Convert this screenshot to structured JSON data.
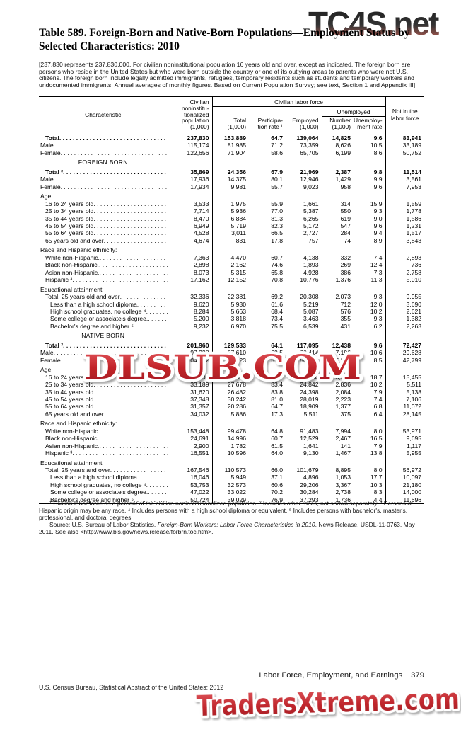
{
  "watermarks": {
    "top": "TC4S.net",
    "middle": "DLSUB.COM",
    "bottom": "TradersXtreme.com"
  },
  "title": "Table 589. Foreign-Born and Native-Born Populations—Employment Status by Selected Characteristics: 2010",
  "intro": "[237,830 represents 237,830,000. For civilian noninstitutional population 16 years old and over, except as indicated. The foreign born are persons who reside in the United States but who were born outside the country or one of its outlying areas to parents who were not U.S. citizens. The foreign born include legally admitted immigrants, refugees, temporary residents such as students and temporary workers and undocumented immigrants. Annual averages of monthly figures. Based on Current Population Survey; see text, Section 1 and Appendix III]",
  "table": {
    "headers": {
      "characteristic": "Characteristic",
      "population": "Civilian\nnoninstitu-\ntionalized\npopulation\n(1,000)",
      "clf_group": "Civilian labor force",
      "total": "Total\n(1,000)",
      "participation": "Participa-\ntion rate ¹",
      "employed": "Employed\n(1,000)",
      "unemployed_group": "Unemployed",
      "number": "Number\n(1,000)",
      "unemp_rate": "Unemploy-\nment rate",
      "not_in_lf": "Not in the\nlabor force"
    },
    "rows": [
      {
        "t": "d",
        "l": "Total",
        "i": 1,
        "b": 1,
        "sp": 1,
        "v": [
          "237,830",
          "153,889",
          "64.7",
          "139,064",
          "14,825",
          "9.6",
          "83,941"
        ]
      },
      {
        "t": "d",
        "l": "Male",
        "i": 0,
        "v": [
          "115,174",
          "81,985",
          "71.2",
          "73,359",
          "8,626",
          "10.5",
          "33,189"
        ]
      },
      {
        "t": "d",
        "l": "Female",
        "i": 0,
        "v": [
          "122,656",
          "71,904",
          "58.6",
          "65,705",
          "6,199",
          "8.6",
          "50,752"
        ]
      },
      {
        "t": "s",
        "l": "FOREIGN BORN",
        "sp": 1
      },
      {
        "t": "d",
        "l": "Total ²",
        "i": 1,
        "b": 1,
        "sp": 1,
        "v": [
          "35,869",
          "24,356",
          "67.9",
          "21,969",
          "2,387",
          "9.8",
          "11,514"
        ]
      },
      {
        "t": "d",
        "l": "Male",
        "i": 0,
        "v": [
          "17,936",
          "14,375",
          "80.1",
          "12,946",
          "1,429",
          "9.9",
          "3,561"
        ]
      },
      {
        "t": "d",
        "l": "Female",
        "i": 0,
        "v": [
          "17,934",
          "9,981",
          "55.7",
          "9,023",
          "958",
          "9.6",
          "7,953"
        ]
      },
      {
        "t": "g",
        "l": "Age:",
        "i": 0,
        "sp": 1
      },
      {
        "t": "d",
        "l": "16 to 24 years old",
        "i": 1,
        "v": [
          "3,533",
          "1,975",
          "55.9",
          "1,661",
          "314",
          "15.9",
          "1,559"
        ]
      },
      {
        "t": "d",
        "l": "25 to 34 years old",
        "i": 1,
        "v": [
          "7,714",
          "5,936",
          "77.0",
          "5,387",
          "550",
          "9.3",
          "1,778"
        ]
      },
      {
        "t": "d",
        "l": "35 to 44 years old",
        "i": 1,
        "v": [
          "8,470",
          "6,884",
          "81.3",
          "6,265",
          "619",
          "9.0",
          "1,586"
        ]
      },
      {
        "t": "d",
        "l": "45 to 54 years old",
        "i": 1,
        "v": [
          "6,949",
          "5,719",
          "82.3",
          "5,172",
          "547",
          "9.6",
          "1,231"
        ]
      },
      {
        "t": "d",
        "l": "55 to 64 years old",
        "i": 1,
        "v": [
          "4,528",
          "3,011",
          "66.5",
          "2,727",
          "284",
          "9.4",
          "1,517"
        ]
      },
      {
        "t": "d",
        "l": "65 years old and over",
        "i": 1,
        "v": [
          "4,674",
          "831",
          "17.8",
          "757",
          "74",
          "8.9",
          "3,843"
        ]
      },
      {
        "t": "g",
        "l": "Race and Hispanic ethnicity:",
        "i": 0,
        "sp": 1
      },
      {
        "t": "d",
        "l": "White non-Hispanic.",
        "i": 1,
        "v": [
          "7,363",
          "4,470",
          "60.7",
          "4,138",
          "332",
          "7.4",
          "2,893"
        ]
      },
      {
        "t": "d",
        "l": "Black non-Hispanic.",
        "i": 1,
        "v": [
          "2,898",
          "2,162",
          "74.6",
          "1,893",
          "269",
          "12.4",
          "736"
        ]
      },
      {
        "t": "d",
        "l": "Asian non-Hispanic.",
        "i": 1,
        "v": [
          "8,073",
          "5,315",
          "65.8",
          "4,928",
          "386",
          "7.3",
          "2,758"
        ]
      },
      {
        "t": "d",
        "l": "Hispanic ³",
        "i": 1,
        "v": [
          "17,162",
          "12,152",
          "70.8",
          "10,776",
          "1,376",
          "11.3",
          "5,010"
        ]
      },
      {
        "t": "g",
        "l": "Educational attainment:",
        "i": 0,
        "sp": 1
      },
      {
        "t": "d",
        "l": "Total, 25 years old and over",
        "i": 1,
        "v": [
          "32,336",
          "22,381",
          "69.2",
          "20,308",
          "2,073",
          "9.3",
          "9,955"
        ]
      },
      {
        "t": "d",
        "l": "Less than a high school diploma",
        "i": 2,
        "v": [
          "9,620",
          "5,930",
          "61.6",
          "5,219",
          "712",
          "12.0",
          "3,690"
        ]
      },
      {
        "t": "d",
        "l": "High school graduates, no college ⁴",
        "i": 2,
        "v": [
          "8,284",
          "5,663",
          "68.4",
          "5,087",
          "576",
          "10.2",
          "2,621"
        ]
      },
      {
        "t": "d",
        "l": "Some college or associate's degree.",
        "i": 2,
        "v": [
          "5,200",
          "3,818",
          "73.4",
          "3,463",
          "355",
          "9.3",
          "1,382"
        ]
      },
      {
        "t": "d",
        "l": "Bachelor's degree and higher ⁵",
        "i": 2,
        "v": [
          "9,232",
          "6,970",
          "75.5",
          "6,539",
          "431",
          "6.2",
          "2,263"
        ]
      },
      {
        "t": "s",
        "l": "NATIVE BORN",
        "sp": 1
      },
      {
        "t": "d",
        "l": "Total ²",
        "i": 1,
        "b": 1,
        "sp": 1,
        "v": [
          "201,960",
          "129,533",
          "64.1",
          "117,095",
          "12,438",
          "9.6",
          "72,427"
        ]
      },
      {
        "t": "d",
        "l": "Male",
        "i": 0,
        "v": [
          "97,238",
          "67,610",
          "69.5",
          "60,414",
          "7,196",
          "10.6",
          "29,628"
        ]
      },
      {
        "t": "d",
        "l": "Female",
        "i": 0,
        "v": [
          "104,722",
          "61,923",
          "59.1",
          "56,681",
          "5,242",
          "8.5",
          "42,799"
        ]
      },
      {
        "t": "g",
        "l": "Age:",
        "i": 0,
        "sp": 1
      },
      {
        "t": "d",
        "l": "16 to 24 years old",
        "i": 1,
        "v": [
          "34,402",
          "18,947",
          "55.1",
          "15,404",
          "3,543",
          "18.7",
          "15,455"
        ]
      },
      {
        "t": "d",
        "l": "25 to 34 years old",
        "i": 1,
        "v": [
          "33,189",
          "27,678",
          "83.4",
          "24,842",
          "2,836",
          "10.2",
          "5,511"
        ]
      },
      {
        "t": "d",
        "l": "35 to 44 years old",
        "i": 1,
        "v": [
          "31,620",
          "26,482",
          "83.8",
          "24,398",
          "2,084",
          "7.9",
          "5,138"
        ]
      },
      {
        "t": "d",
        "l": "45 to 54 years old",
        "i": 1,
        "v": [
          "37,348",
          "30,242",
          "81.0",
          "28,019",
          "2,223",
          "7.4",
          "7,106"
        ]
      },
      {
        "t": "d",
        "l": "55 to 64 years old",
        "i": 1,
        "v": [
          "31,357",
          "20,286",
          "64.7",
          "18,909",
          "1,377",
          "6.8",
          "11,072"
        ]
      },
      {
        "t": "d",
        "l": "65 years old and over",
        "i": 1,
        "v": [
          "34,032",
          "5,886",
          "17.3",
          "5,511",
          "375",
          "6.4",
          "28,145"
        ]
      },
      {
        "t": "g",
        "l": "Race and Hispanic ethnicity:",
        "i": 0,
        "sp": 1
      },
      {
        "t": "d",
        "l": "White non-Hispanic.",
        "i": 1,
        "v": [
          "153,448",
          "99,478",
          "64.8",
          "91,483",
          "7,994",
          "8.0",
          "53,971"
        ]
      },
      {
        "t": "d",
        "l": "Black non-Hispanic.",
        "i": 1,
        "v": [
          "24,691",
          "14,996",
          "60.7",
          "12,529",
          "2,467",
          "16.5",
          "9,695"
        ]
      },
      {
        "t": "d",
        "l": "Asian non-Hispanic.",
        "i": 1,
        "v": [
          "2,900",
          "1,782",
          "61.5",
          "1,641",
          "141",
          "7.9",
          "1,117"
        ]
      },
      {
        "t": "d",
        "l": "Hispanic ³",
        "i": 1,
        "v": [
          "16,551",
          "10,596",
          "64.0",
          "9,130",
          "1,467",
          "13.8",
          "5,955"
        ]
      },
      {
        "t": "g",
        "l": "Educational attainment:",
        "i": 0,
        "sp": 1
      },
      {
        "t": "d",
        "l": "Total, 25 years and over",
        "i": 1,
        "v": [
          "167,546",
          "110,573",
          "66.0",
          "101,679",
          "8,895",
          "8.0",
          "56,972"
        ]
      },
      {
        "t": "d",
        "l": "Less than a high school diploma",
        "i": 2,
        "v": [
          "16,046",
          "5,949",
          "37.1",
          "4,896",
          "1,053",
          "17.7",
          "10,097"
        ]
      },
      {
        "t": "d",
        "l": "High school graduates, no college ⁴",
        "i": 2,
        "v": [
          "53,753",
          "32,573",
          "60.6",
          "29,206",
          "3,367",
          "10.3",
          "21,180"
        ]
      },
      {
        "t": "d",
        "l": "Some college or associate's degree.",
        "i": 2,
        "v": [
          "47,022",
          "33,022",
          "70.2",
          "30,284",
          "2,738",
          "8.3",
          "14,000"
        ]
      },
      {
        "t": "d",
        "l": "Bachelor's degree and higher ⁵",
        "i": 2,
        "v": [
          "50,724",
          "39,029",
          "76.9",
          "37,293",
          "1,736",
          "4.4",
          "11,696"
        ]
      }
    ]
  },
  "footnotes": {
    "notes": "¹ Civilian labor force as a percent of the civilian noninstitutionalized population. ² Includes other races, not shown separately. ³ Persons of Hispanic origin may be any race. ⁴ Includes persons with a high school diploma or equivalent. ⁵ Includes persons with bachelor's, master's, professional, and doctoral degrees.",
    "source_pre": "Source: U.S. Bureau of Labor Statistics, ",
    "source_italic": "Foreign-Born Workers: Labor Force Characteristics in 2010",
    "source_post": ", News Release, USDL-11-0763, May 2011. See also <http://www.bls.gov/news.release/forbrn.toc.htm>."
  },
  "footer": {
    "section_title": "Labor Force, Employment, and Earnings",
    "page_number": "379",
    "census_line": "U.S. Census Bureau, Statistical Abstract of the United States: 2012"
  },
  "colors": {
    "watermark_red": "#b5232a",
    "watermark_dark": "#2e2e2e"
  }
}
